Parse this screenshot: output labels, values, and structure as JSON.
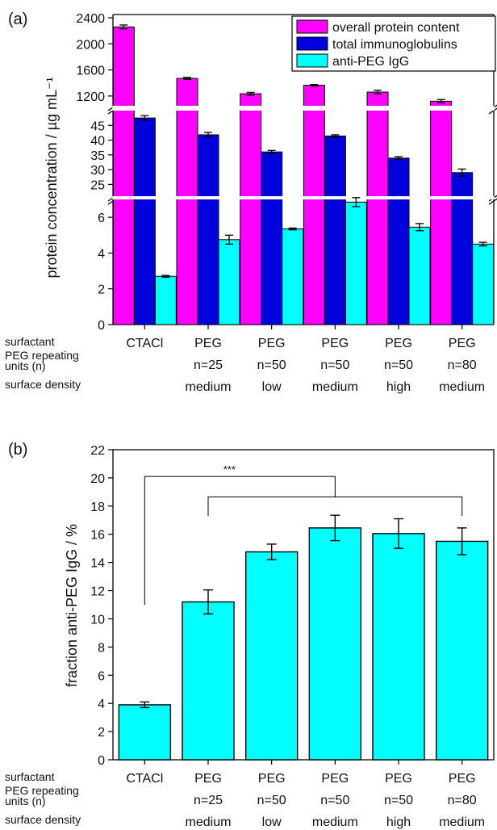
{
  "categories": {
    "surfactant_label": "surfactant",
    "repeat_label": "PEG repeating\nunits (n)",
    "density_label": "surface density",
    "surfactant": [
      "CTACl",
      "PEG",
      "PEG",
      "PEG",
      "PEG",
      "PEG"
    ],
    "repeat_units": [
      "",
      "n=25",
      "n=50",
      "n=50",
      "n=50",
      "n=80"
    ],
    "surface_density": [
      "",
      "medium",
      "low",
      "medium",
      "high",
      "medium"
    ]
  },
  "colors": {
    "overall": "#ff00ff",
    "total_ig": "#0000dd",
    "anti_peg": "#00ffff",
    "axis": "#000000"
  },
  "chart_data": [
    {
      "panel": "(a)",
      "type": "bar",
      "ylabel": "protein concentration / µg mL⁻¹",
      "broken_axis": true,
      "segments": [
        {
          "ylim": [
            0,
            7
          ],
          "ticks": [
            0,
            2,
            4,
            6
          ]
        },
        {
          "ylim": [
            21,
            50
          ],
          "ticks": [
            25,
            30,
            35,
            40,
            45
          ]
        },
        {
          "ylim": [
            1050,
            2450
          ],
          "ticks": [
            1200,
            1600,
            2000,
            2400
          ]
        }
      ],
      "series": [
        {
          "name": "overall protein content",
          "values": [
            2260,
            1470,
            1235,
            1365,
            1260,
            1120
          ],
          "errors": [
            30,
            15,
            20,
            12,
            28,
            25
          ]
        },
        {
          "name": "total immunoglobulins",
          "values": [
            47.5,
            41.8,
            36.0,
            41.4,
            33.9,
            29.0
          ],
          "errors": [
            0.8,
            0.8,
            0.5,
            0.4,
            0.5,
            1.2
          ]
        },
        {
          "name": "anti-PEG IgG",
          "values": [
            2.7,
            4.75,
            5.35,
            6.85,
            5.45,
            4.5
          ],
          "errors": [
            0.05,
            0.25,
            0.05,
            0.25,
            0.2,
            0.1
          ]
        }
      ]
    },
    {
      "panel": "(b)",
      "type": "bar",
      "ylabel": "fraction anti-PEG IgG / %",
      "ylim": [
        0,
        22
      ],
      "ticks": [
        0,
        2,
        4,
        6,
        8,
        10,
        12,
        14,
        16,
        18,
        20,
        22
      ],
      "values": [
        3.9,
        11.2,
        14.75,
        16.45,
        16.05,
        15.5
      ],
      "errors": [
        0.2,
        0.85,
        0.55,
        0.9,
        1.05,
        0.95
      ],
      "significance": "***"
    }
  ]
}
